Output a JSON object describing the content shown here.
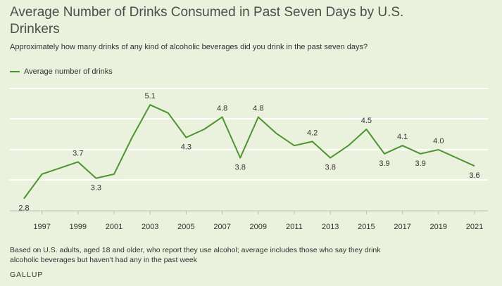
{
  "chart_data": {
    "type": "line",
    "title": "Average Number of Drinks Consumed in Past Seven Days by U.S. Drinkers",
    "subtitle": "Approximately how many drinks of any kind of alcoholic beverages did you drink in the past seven days?",
    "xlabel": "",
    "ylabel": "",
    "ylim": [
      2.5,
      5.5
    ],
    "grid": true,
    "legend_position": "top-left",
    "series": [
      {
        "name": "Average number of drinks",
        "color": "#4a962d",
        "x": [
          1996,
          1997,
          1999,
          2000,
          2001,
          2002,
          2003,
          2004,
          2005,
          2006,
          2007,
          2008,
          2009,
          2010,
          2011,
          2012,
          2013,
          2014,
          2015,
          2016,
          2017,
          2018,
          2019,
          2020,
          2021
        ],
        "values": [
          2.8,
          3.4,
          3.7,
          3.3,
          3.4,
          4.3,
          5.1,
          4.9,
          4.3,
          4.5,
          4.8,
          3.8,
          4.8,
          4.4,
          4.1,
          4.2,
          3.8,
          4.1,
          4.5,
          3.9,
          4.1,
          3.9,
          4.0,
          3.8,
          3.6
        ]
      }
    ],
    "x_ticks": [
      "1997",
      "1999",
      "2001",
      "2003",
      "2005",
      "2007",
      "2009",
      "2011",
      "2013",
      "2015",
      "2017",
      "2019",
      "2021"
    ],
    "data_labels": [
      {
        "year": 1996,
        "text": "2.8",
        "pos": "below"
      },
      {
        "year": 1999,
        "text": "3.7",
        "pos": "above"
      },
      {
        "year": 2000,
        "text": "3.3",
        "pos": "below"
      },
      {
        "year": 2003,
        "text": "5.1",
        "pos": "above"
      },
      {
        "year": 2005,
        "text": "4.3",
        "pos": "below"
      },
      {
        "year": 2007,
        "text": "4.8",
        "pos": "above"
      },
      {
        "year": 2008,
        "text": "3.8",
        "pos": "below"
      },
      {
        "year": 2009,
        "text": "4.8",
        "pos": "above"
      },
      {
        "year": 2012,
        "text": "4.2",
        "pos": "above"
      },
      {
        "year": 2013,
        "text": "3.8",
        "pos": "below"
      },
      {
        "year": 2015,
        "text": "4.5",
        "pos": "above"
      },
      {
        "year": 2016,
        "text": "3.9",
        "pos": "below"
      },
      {
        "year": 2017,
        "text": "4.1",
        "pos": "above"
      },
      {
        "year": 2018,
        "text": "3.9",
        "pos": "below"
      },
      {
        "year": 2019,
        "text": "4.0",
        "pos": "above"
      },
      {
        "year": 2021,
        "text": "3.6",
        "pos": "below"
      }
    ],
    "legend_label": "Average number of drinks",
    "footnote": "Based on U.S. adults, aged 18 and older, who report they use alcohol; average includes those who say they drink alcoholic beverages but haven't had any in the past week",
    "source": "GALLUP"
  }
}
